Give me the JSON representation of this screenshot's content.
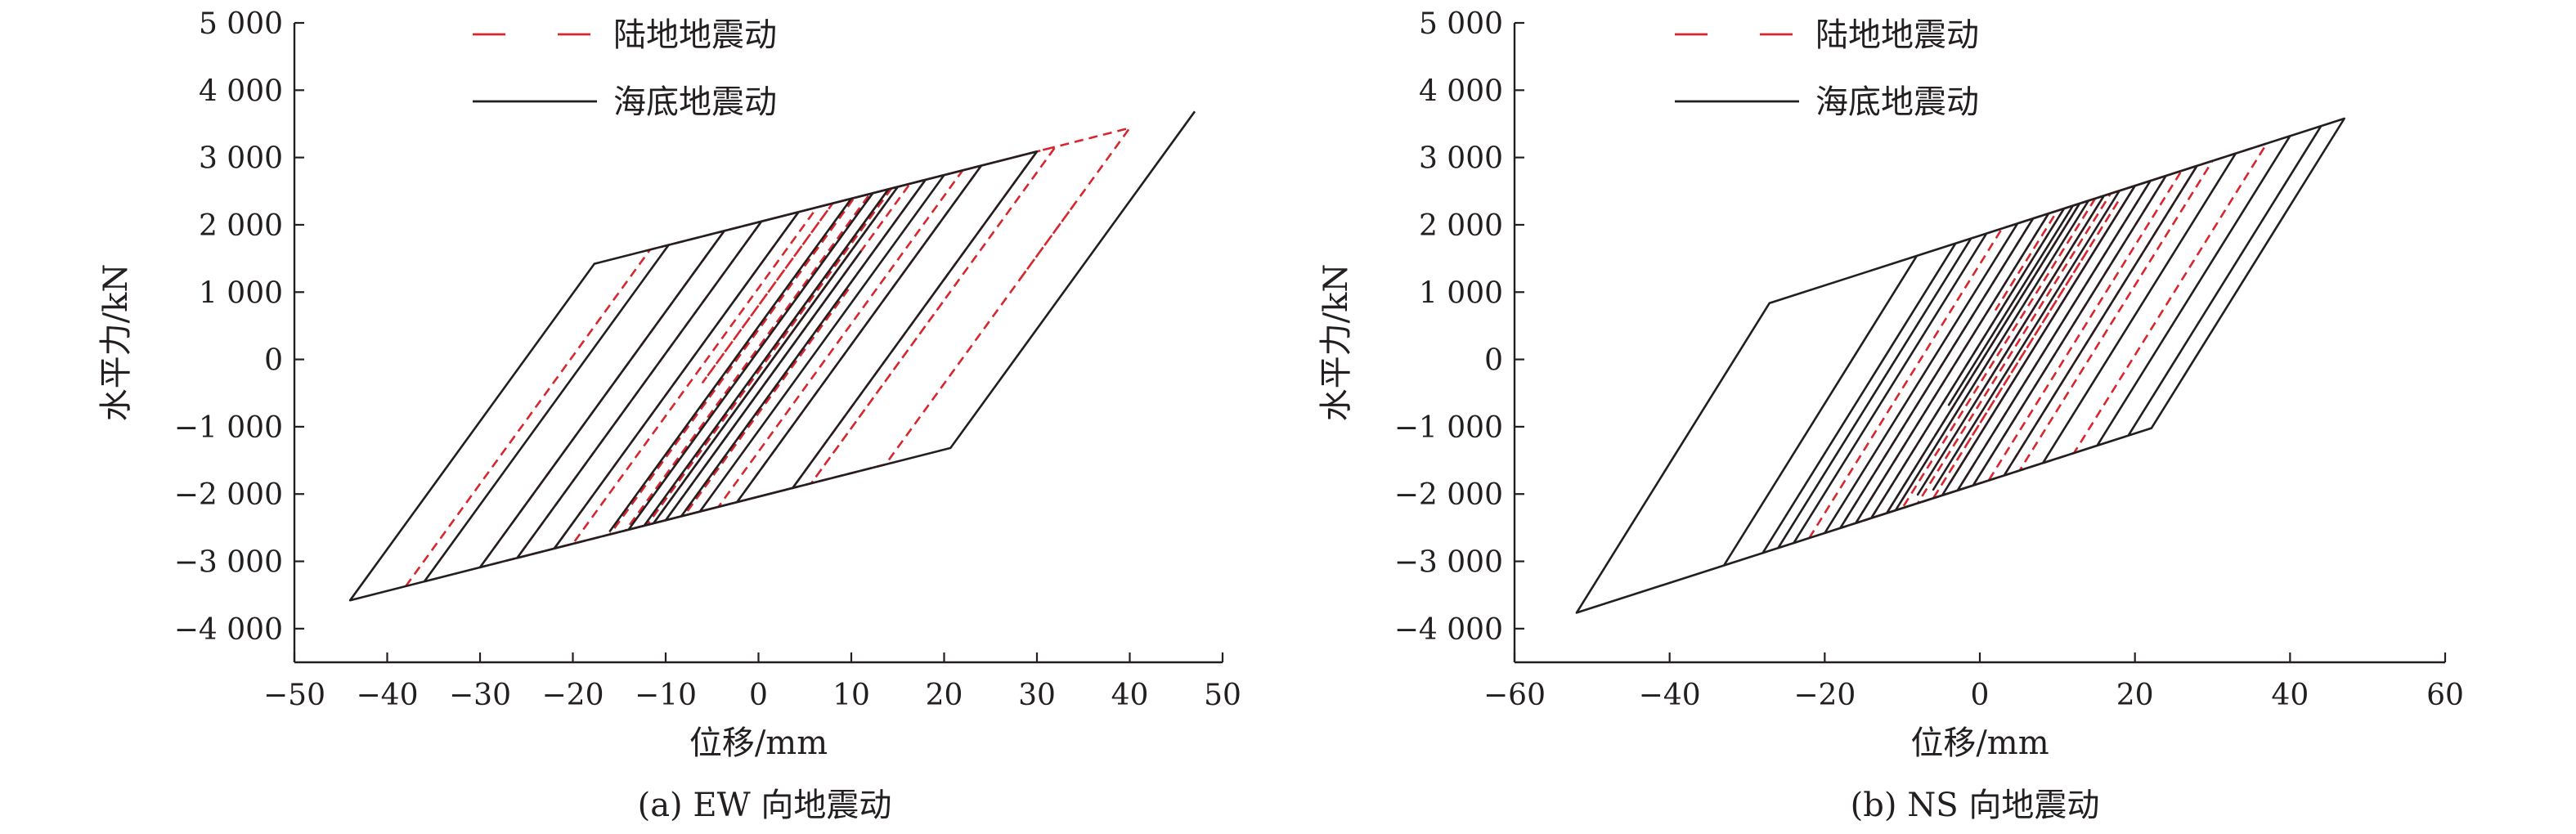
{
  "colors": {
    "land": "#d7262e",
    "sea": "#231f20",
    "axis": "#231f20"
  },
  "chart_data": [
    {
      "type": "line",
      "caption": "(a) EW 向地震动",
      "xlabel": "位移/mm",
      "ylabel": "水平力/kN",
      "xlim": [
        -50,
        50
      ],
      "ylim": [
        -4500,
        5000
      ],
      "xticks": [
        -50,
        -40,
        -30,
        -20,
        -10,
        0,
        10,
        20,
        30,
        40,
        50
      ],
      "xtick_labels": [
        "−50",
        "−40",
        "−30",
        "−20",
        "−10",
        "0",
        "10",
        "20",
        "30",
        "40",
        "50"
      ],
      "yticks": [
        5000,
        4000,
        3000,
        2000,
        1000,
        0,
        -1000,
        -2000,
        -3000,
        -4000
      ],
      "ytick_labels": [
        "5 000",
        "4 000",
        "3 000",
        "2 000",
        "1 000",
        "0",
        "−1 000",
        "−2 000",
        "−3 000",
        "−4 000"
      ],
      "legend_position": "top-left",
      "grid": false,
      "hysteresis": {
        "k_elastic": 190,
        "k_post": 35,
        "yield_force": 2500,
        "sea_min_disp": -44,
        "sea_max_disp": 47,
        "land_min_disp": -38,
        "land_max_disp": 40
      },
      "series": [
        {
          "name": "陆地地震动",
          "style": "dashed",
          "branches": [
            [
              -38,
              40,
              28,
              34,
              -30,
              32,
              6,
              20,
              -22,
              24,
              -10,
              18,
              -26,
              15,
              -2,
              10,
              -16,
              12,
              3,
              -20,
              8,
              -6,
              14,
              2,
              22,
              -12,
              16,
              30,
              4,
              -8,
              10
            ]
          ]
        },
        {
          "name": "海底地震动",
          "style": "solid",
          "branches": [
            [
              47,
              -44,
              30,
              -36,
              24,
              -30,
              14,
              -26,
              20,
              -22,
              10,
              -16,
              6,
              -12,
              15,
              -8,
              12,
              -4,
              8,
              -14,
              5,
              -2,
              18,
              -10,
              3,
              9,
              -6,
              11,
              0,
              4
            ]
          ]
        }
      ]
    },
    {
      "type": "line",
      "caption": "(b) NS 向地震动",
      "xlabel": "位移/mm",
      "ylabel": "水平力/kN",
      "xlim": [
        -60,
        60
      ],
      "ylim": [
        -4500,
        5000
      ],
      "xticks": [
        -60,
        -40,
        -20,
        0,
        20,
        40,
        60
      ],
      "xtick_labels": [
        "−60",
        "−40",
        "−20",
        "0",
        "20",
        "40",
        "60"
      ],
      "yticks": [
        5000,
        4000,
        3000,
        2000,
        1000,
        0,
        -1000,
        -2000,
        -3000,
        -4000
      ],
      "ytick_labels": [
        "5 000",
        "4 000",
        "3 000",
        "2 000",
        "1 000",
        "0",
        "−1 000",
        "−2 000",
        "−3 000",
        "−4 000"
      ],
      "legend_position": "top-left",
      "grid": false,
      "hysteresis": {
        "k_elastic": 185,
        "k_post": 37,
        "yield_force": 2300,
        "sea_min_disp": -52,
        "sea_max_disp": 47,
        "land_min_disp": -22,
        "land_max_disp": 37
      },
      "series": [
        {
          "name": "陆地地震动",
          "style": "dashed",
          "branches": [
            [
              -22,
              37,
              -12,
              28,
              -18,
              24,
              -8,
              30,
              -14,
              20,
              -4,
              26,
              -10,
              16,
              0,
              22,
              -6,
              12,
              4,
              18,
              -2,
              14,
              8,
              -16,
              10,
              2
            ]
          ]
        },
        {
          "name": "海底地震动",
          "style": "solid",
          "branches": [
            [
              47,
              -52,
              47,
              -33,
              44,
              -28,
              40,
              -24,
              33,
              -20,
              28,
              -26,
              24,
              -16,
              20,
              -12,
              16,
              -8,
              22,
              -18,
              12,
              -4,
              14,
              -10,
              8,
              -14,
              18,
              -6,
              10,
              -2,
              6
            ]
          ]
        }
      ]
    }
  ]
}
